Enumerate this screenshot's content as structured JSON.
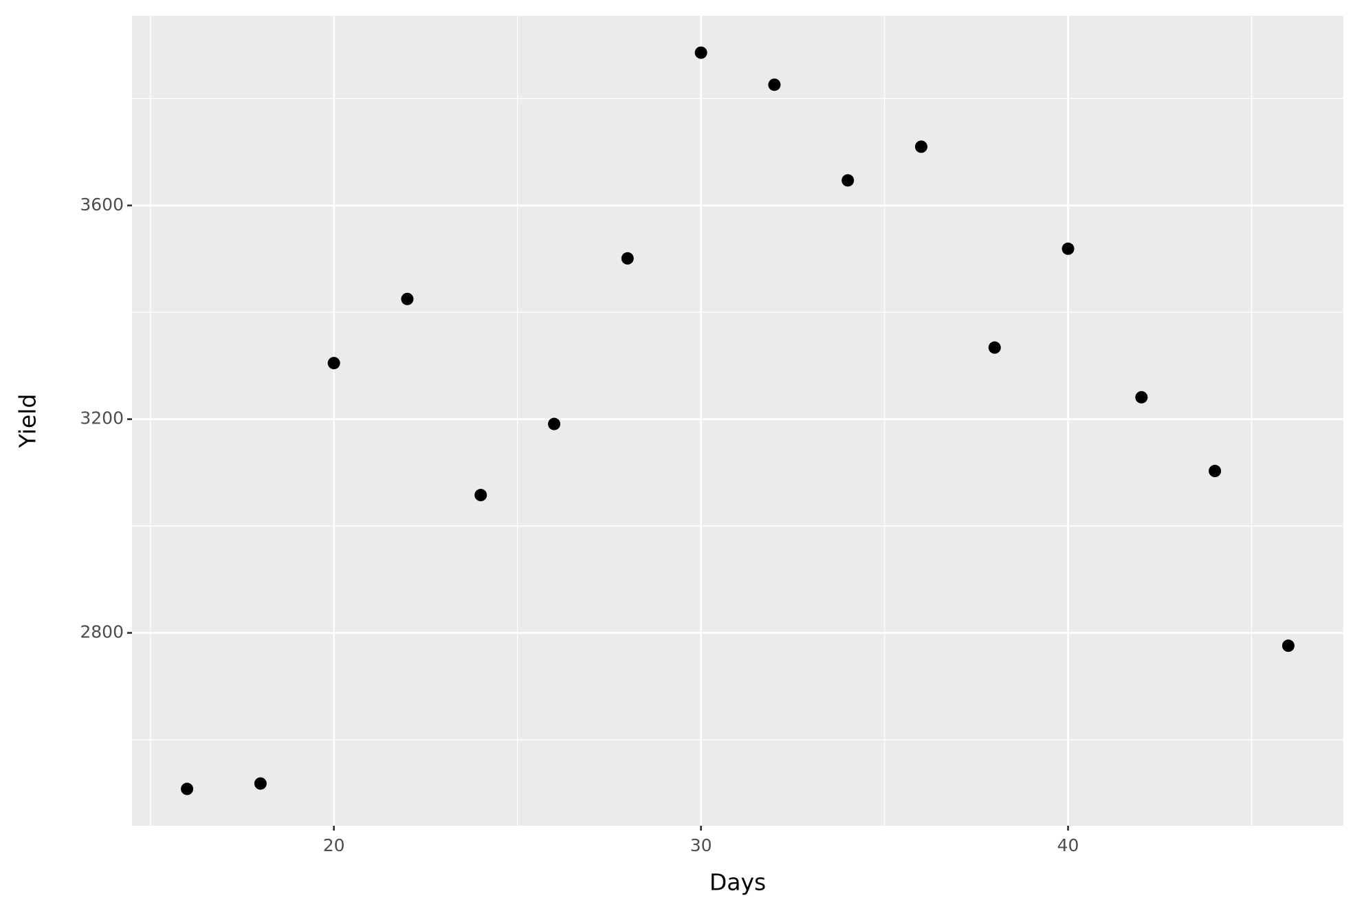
{
  "chart_data": {
    "type": "scatter",
    "x_label": "Days",
    "y_label": "Yield",
    "x": [
      16,
      18,
      20,
      22,
      24,
      26,
      28,
      30,
      32,
      34,
      36,
      38,
      40,
      42,
      44,
      46
    ],
    "values": [
      2508,
      2518,
      3305,
      3425,
      3058,
      3191,
      3501,
      3886,
      3826,
      3647,
      3710,
      3334,
      3519,
      3241,
      3103,
      2776
    ],
    "color": "#000000",
    "xlim": [
      14.5,
      47.5
    ],
    "xticks": [
      20,
      30,
      40
    ],
    "minor_xticks": [
      15,
      25,
      35,
      45
    ],
    "ylim": [
      2439,
      3955
    ],
    "yticks": [
      2800,
      3200,
      3600
    ],
    "minor_yticks": [
      2600,
      3000,
      3400,
      3800
    ],
    "grid": true
  }
}
